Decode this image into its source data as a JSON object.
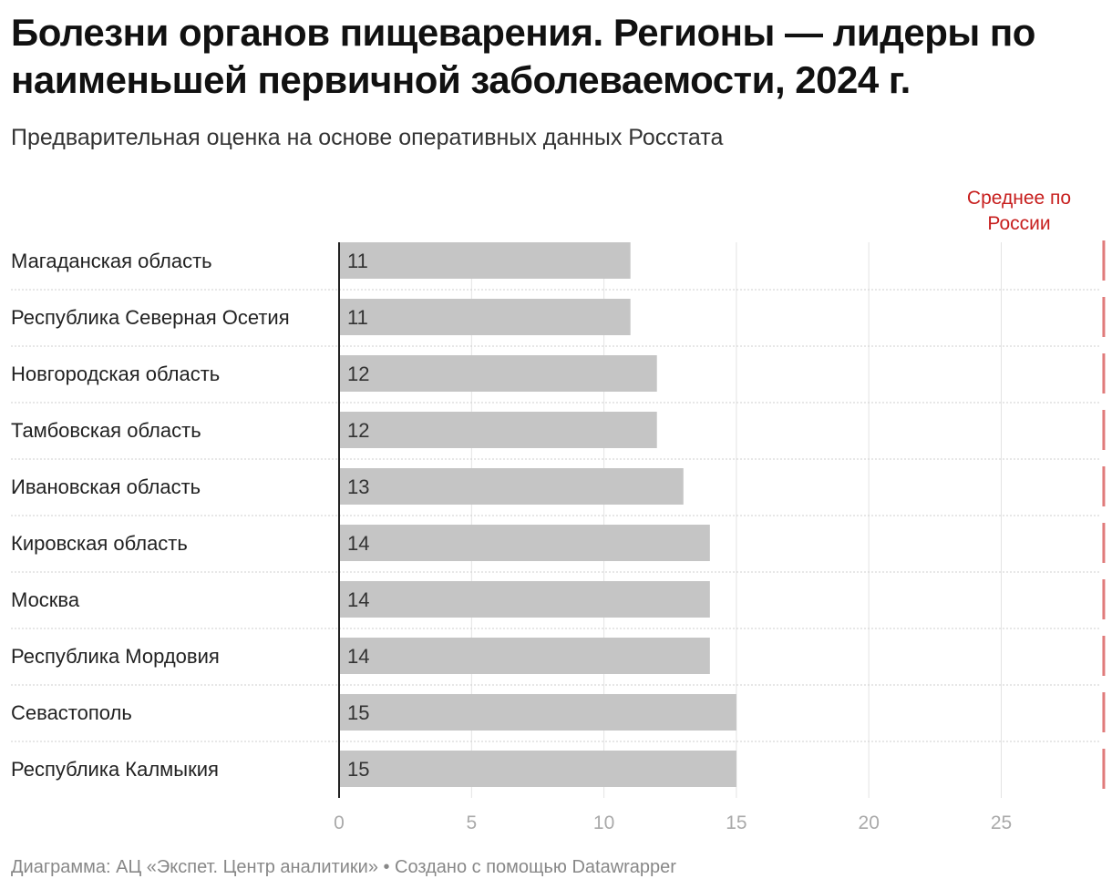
{
  "title": "Болезни органов пищеварения. Регионы — лидеры по наименьшей первичной заболеваемости, 2024 г.",
  "subtitle": "Предварительная оценка на основе оперативных данных Росстата",
  "average_label": "Среднее по России",
  "footer": "Диаграмма: АЦ «Экспет. Центр аналитики» • Создано с помощью Datawrapper",
  "colors": {
    "bar": "#c5c5c5",
    "average_line": "#e07b7b",
    "average_text": "#c71e1d",
    "grid": "#e3e3e3",
    "axis_text": "#aaaaaa"
  },
  "chart_data": {
    "type": "bar",
    "orientation": "horizontal",
    "categories": [
      "Магаданская область",
      "Республика Северная Осетия",
      "Новгородская область",
      "Тамбовская область",
      "Ивановская область",
      "Кировская область",
      "Москва",
      "Республика Мордовия",
      "Севастополь",
      "Республика Калмыкия"
    ],
    "values": [
      11,
      11,
      12,
      12,
      13,
      14,
      14,
      14,
      15,
      15
    ],
    "value_labels": [
      "11",
      "11",
      "12",
      "12",
      "13",
      "14",
      "14",
      "14",
      "15",
      "15"
    ],
    "x_ticks": [
      0,
      5,
      10,
      15,
      20,
      25
    ],
    "xlim": [
      0,
      28.8
    ],
    "average": 28.8,
    "title": "Болезни органов пищеварения. Регионы — лидеры по наименьшей первичной заболеваемости, 2024 г.",
    "xlabel": "",
    "ylabel": ""
  }
}
